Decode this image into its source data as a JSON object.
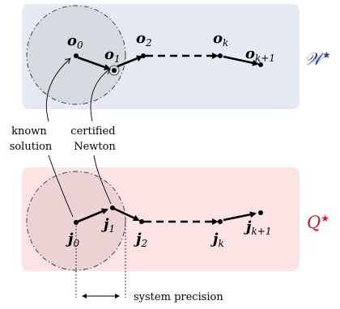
{
  "top_panel": {
    "label": "𝒲",
    "superscript": "★",
    "nodes": [
      {
        "base": "o",
        "sub": "0"
      },
      {
        "base": "o",
        "sub": "1"
      },
      {
        "base": "o",
        "sub": "2"
      },
      {
        "base": "o",
        "sub": "k"
      },
      {
        "base": "o",
        "sub": "k+1"
      }
    ]
  },
  "bottom_panel": {
    "label": "Q",
    "superscript": "★",
    "nodes": [
      {
        "base": "j",
        "sub": "0"
      },
      {
        "base": "j",
        "sub": "1"
      },
      {
        "base": "j",
        "sub": "2"
      },
      {
        "base": "j",
        "sub": "k"
      },
      {
        "base": "j",
        "sub": "k+1"
      }
    ]
  },
  "annotations": {
    "known_solution": [
      "known",
      "solution"
    ],
    "certified_newton": [
      "certified",
      "Newton"
    ],
    "system_precision": "system precision"
  },
  "colors": {
    "top_panel_fill": "#e6eaf2",
    "bottom_panel_fill": "#fde3e3",
    "top_label": "#2f3f9e",
    "bottom_label": "#d0182a",
    "circle_fill_top": "#c8ccd4",
    "circle_fill_bottom": "#e2c8c8"
  }
}
